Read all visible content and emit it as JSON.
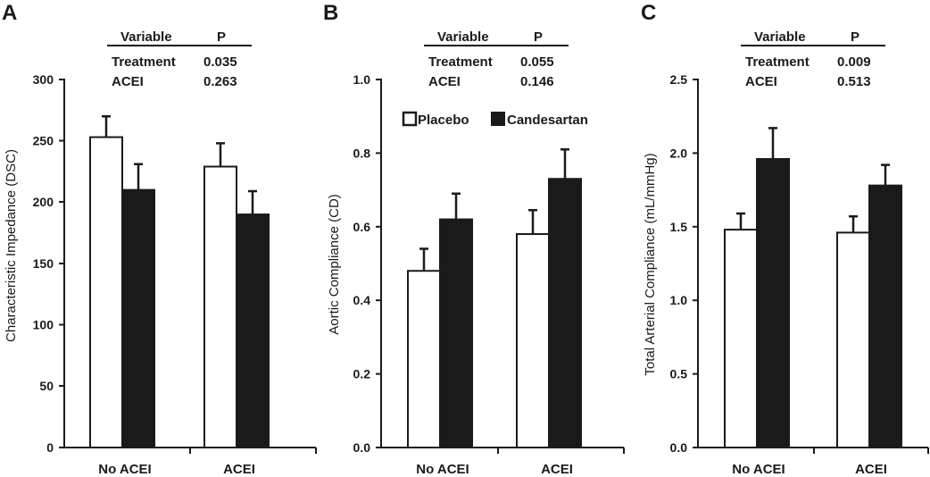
{
  "chart_data": [
    {
      "type": "bar",
      "panel": "A",
      "categories": [
        "No ACEI",
        "ACEI"
      ],
      "series": [
        {
          "name": "Placebo",
          "color": "#ffffff",
          "values": [
            253,
            229
          ],
          "errors": [
            17,
            19
          ]
        },
        {
          "name": "Candesartan",
          "color": "#1a1a1a",
          "values": [
            210,
            190
          ],
          "errors": [
            21,
            19
          ]
        }
      ],
      "ylabel": "Characteristic Impedance (DSC)",
      "ylim": [
        0,
        300
      ],
      "yticks": [
        "0",
        "50",
        "100",
        "150",
        "200",
        "250",
        "300"
      ],
      "stats_table": {
        "headers": [
          "Variable",
          "P"
        ],
        "rows": [
          [
            "Treatment",
            "0.035"
          ],
          [
            "ACEI",
            "0.263"
          ]
        ]
      }
    },
    {
      "type": "bar",
      "panel": "B",
      "categories": [
        "No ACEI",
        "ACEI"
      ],
      "series": [
        {
          "name": "Placebo",
          "color": "#ffffff",
          "values": [
            0.48,
            0.58
          ],
          "errors": [
            0.06,
            0.065
          ]
        },
        {
          "name": "Candesartan",
          "color": "#1a1a1a",
          "values": [
            0.62,
            0.73
          ],
          "errors": [
            0.07,
            0.08
          ]
        }
      ],
      "ylabel": "Aortic Compliance (CD)",
      "ylim": [
        0,
        1.0
      ],
      "yticks": [
        "0.0",
        "0.2",
        "0.4",
        "0.6",
        "0.8",
        "1.0"
      ],
      "legend": {
        "placement": "top-right",
        "entries": [
          "Placebo",
          "Candesartan"
        ]
      },
      "stats_table": {
        "headers": [
          "Variable",
          "P"
        ],
        "rows": [
          [
            "Treatment",
            "0.055"
          ],
          [
            "ACEI",
            "0.146"
          ]
        ]
      }
    },
    {
      "type": "bar",
      "panel": "C",
      "categories": [
        "No ACEI",
        "ACEI"
      ],
      "series": [
        {
          "name": "Placebo",
          "color": "#ffffff",
          "values": [
            1.48,
            1.46
          ],
          "errors": [
            0.11,
            0.11
          ]
        },
        {
          "name": "Candesartan",
          "color": "#1a1a1a",
          "values": [
            1.96,
            1.78
          ],
          "errors": [
            0.21,
            0.14
          ]
        }
      ],
      "ylabel": "Total Arterial Compliance (mL/mmHg)",
      "ylim": [
        0,
        2.5
      ],
      "yticks": [
        "0.0",
        "0.5",
        "1.0",
        "1.5",
        "2.0",
        "2.5"
      ],
      "stats_table": {
        "headers": [
          "Variable",
          "P"
        ],
        "rows": [
          [
            "Treatment",
            "0.009"
          ],
          [
            "ACEI",
            "0.513"
          ]
        ]
      }
    }
  ]
}
